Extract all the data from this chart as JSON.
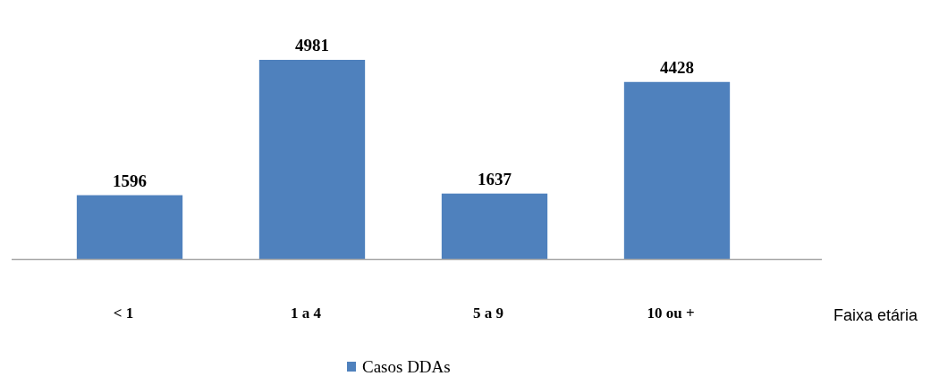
{
  "chart_data": {
    "type": "bar",
    "categories": [
      "< 1",
      "1 a 4",
      "5 a 9",
      "10 ou +"
    ],
    "series": [
      {
        "name": "Casos DDAs",
        "color": "#4f81bd",
        "values": [
          1596,
          4981,
          1637,
          4428
        ]
      }
    ],
    "xlabel": "Faixa etária",
    "data_labels": true,
    "legend": "bottom"
  }
}
